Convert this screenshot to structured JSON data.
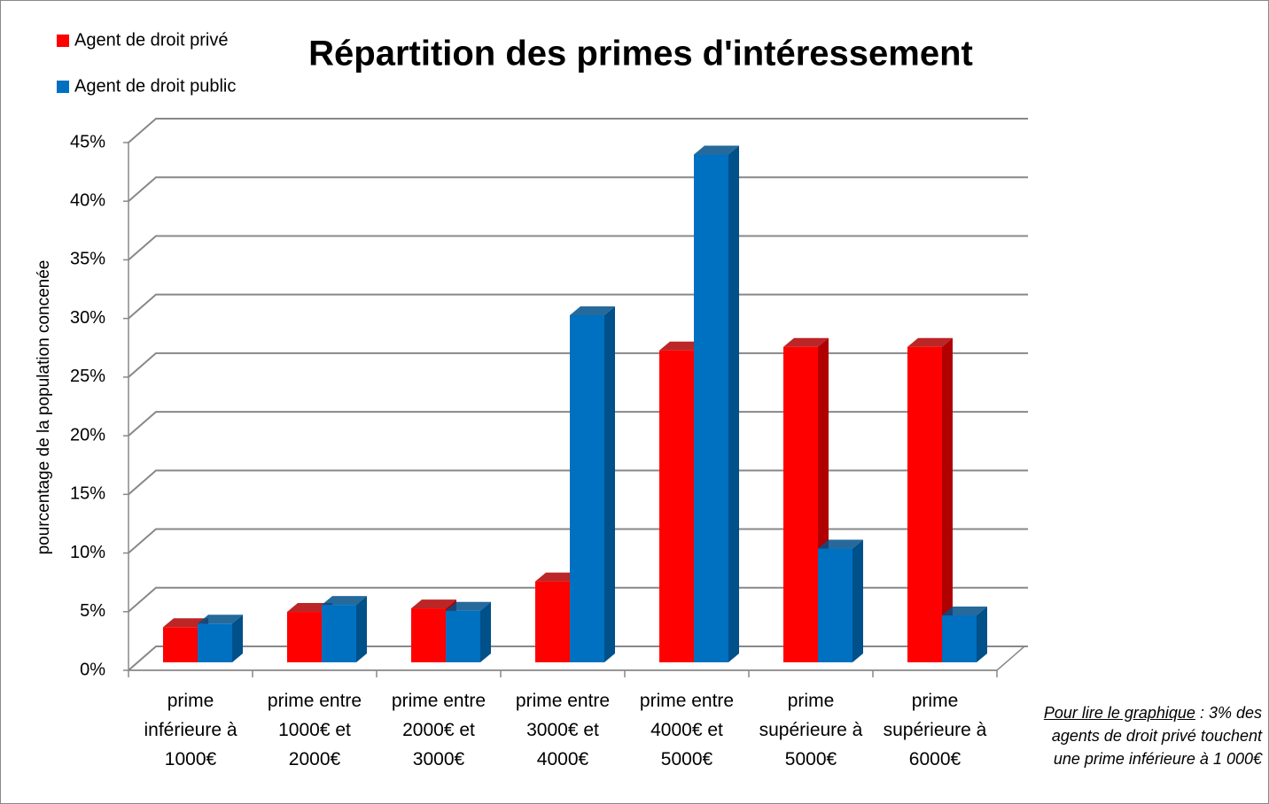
{
  "chart_data": {
    "type": "bar3d",
    "title": "Répartition des primes d'intéressement",
    "y_label": "pourcentage de la population concenée",
    "categories": [
      "prime inférieure à 1000€",
      "prime entre 1000€ et 2000€",
      "prime entre 2000€ et 3000€",
      "prime entre 3000€ et 4000€",
      "prime entre 4000€ et 5000€",
      "prime supérieure à 5000€",
      "prime supérieure à 6000€"
    ],
    "series": [
      {
        "name": "Agent de droit privé",
        "color": "#ff0000",
        "side_color": "#b00000",
        "values": [
          3,
          4.3,
          4.6,
          6.9,
          26.6,
          26.9,
          26.9
        ]
      },
      {
        "name": "Agent de droit public",
        "color": "#0070c0",
        "side_color": "#00508a",
        "values": [
          3.3,
          4.9,
          4.4,
          29.6,
          43.3,
          9.7,
          4.0
        ]
      }
    ],
    "ylim": [
      0,
      45
    ],
    "yticks": [
      {
        "value": 0,
        "label": "0%"
      },
      {
        "value": 5,
        "label": "5%"
      },
      {
        "value": 10,
        "label": "10%"
      },
      {
        "value": 15,
        "label": "15%"
      },
      {
        "value": 20,
        "label": "20%"
      },
      {
        "value": 25,
        "label": "25%"
      },
      {
        "value": 30,
        "label": "30%"
      },
      {
        "value": 35,
        "label": "35%"
      },
      {
        "value": 40,
        "label": "40%"
      },
      {
        "value": 45,
        "label": "45%"
      }
    ],
    "grid": true,
    "legend": "top-left",
    "note": {
      "heading": "Pour lire le graphique",
      "text": ": 3% des agents de droit privé touchent une prime inférieure à 1 000€"
    }
  }
}
